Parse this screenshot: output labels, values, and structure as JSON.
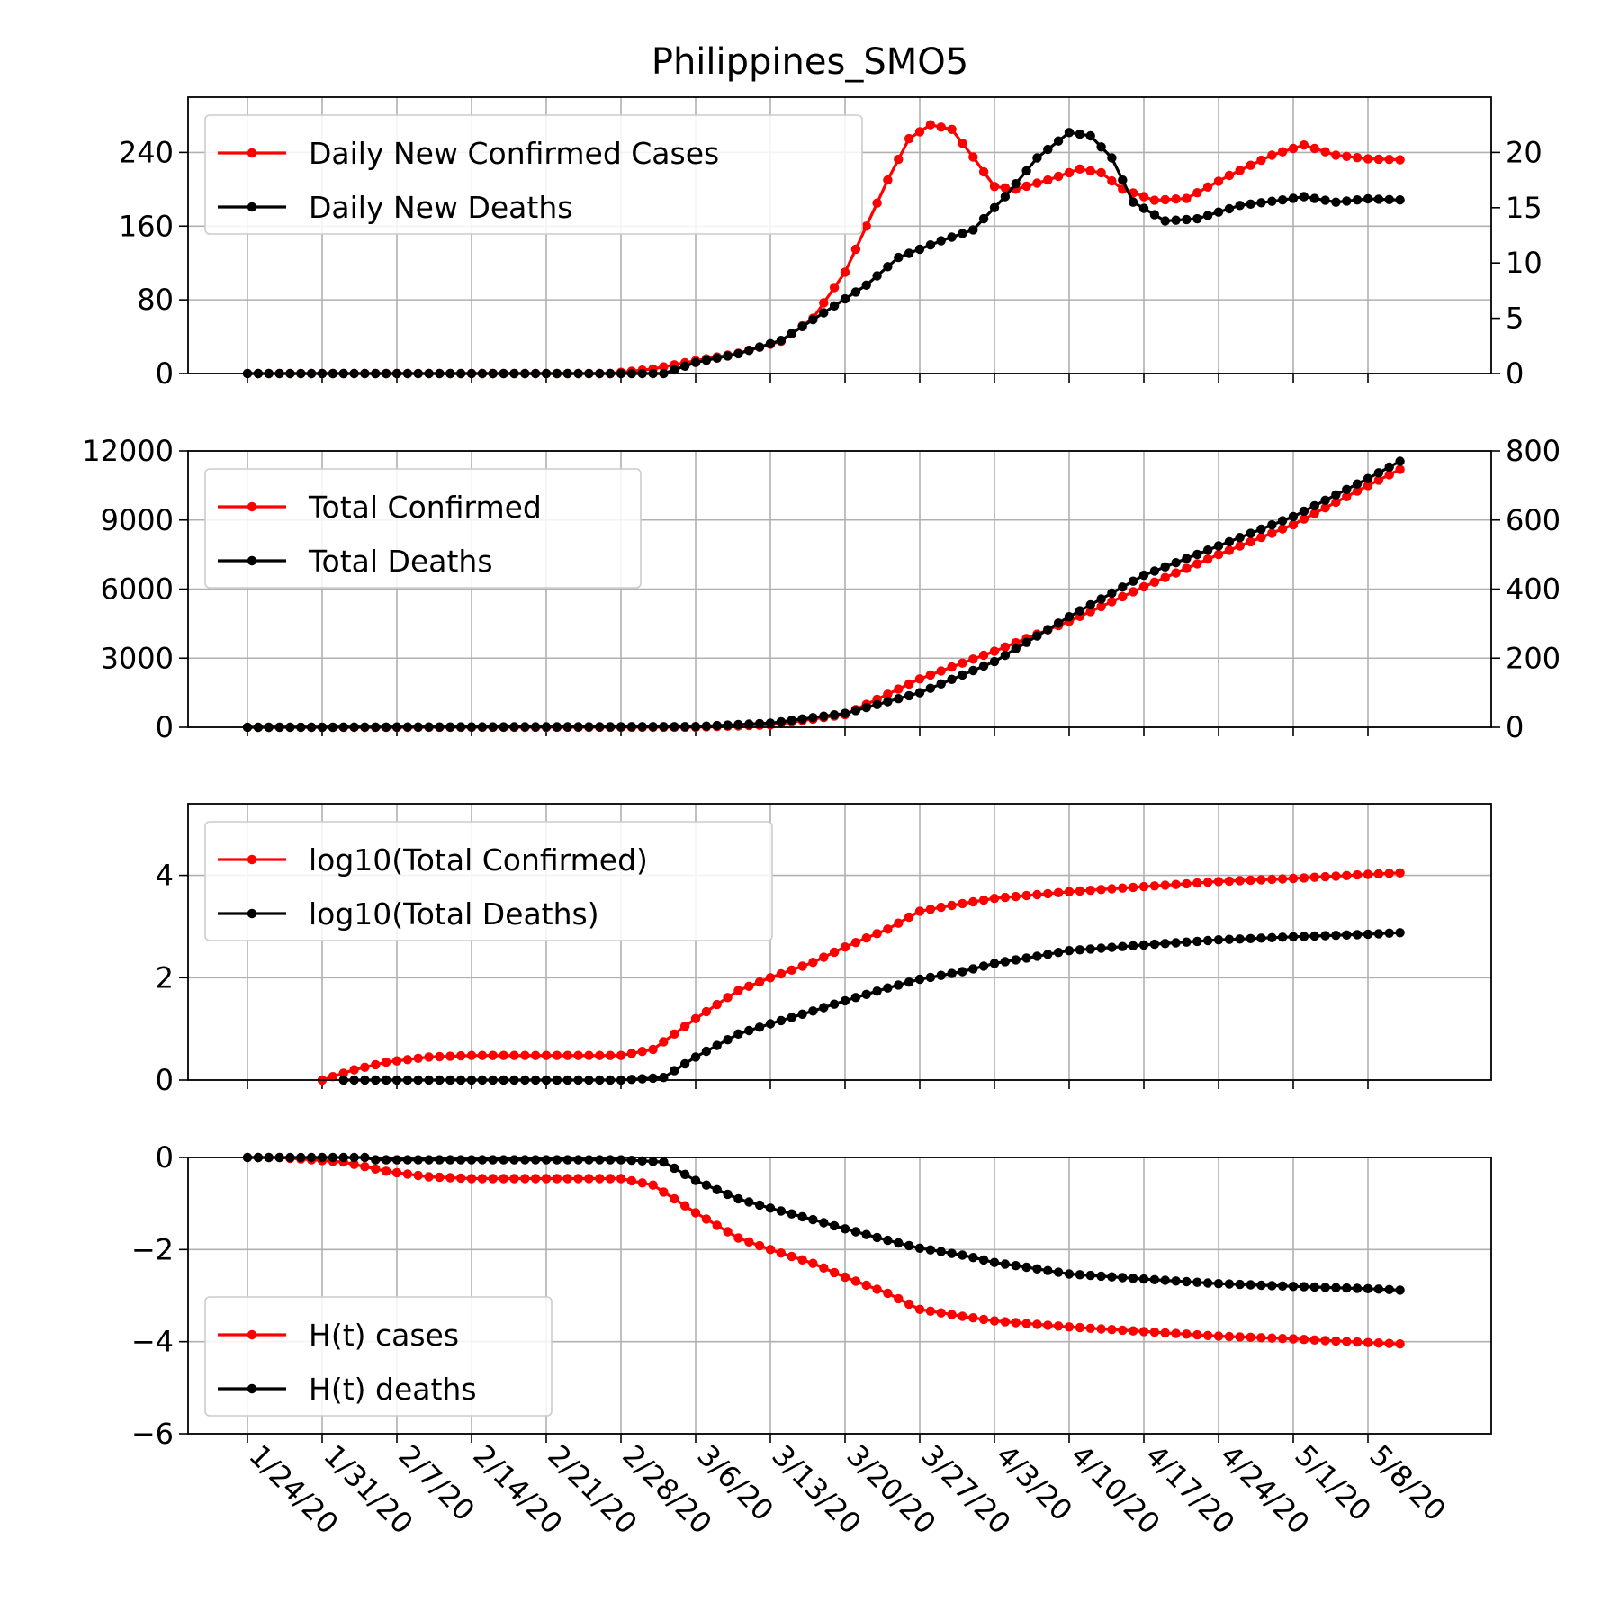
{
  "title": "Philippines_SMO5",
  "colors": {
    "cases": "#ff0000",
    "deaths": "#000000",
    "grid": "#b0b0b0"
  },
  "x_tick_labels": [
    "1/24/20",
    "1/31/20",
    "2/7/20",
    "2/14/20",
    "2/21/20",
    "2/28/20",
    "3/6/20",
    "3/13/20",
    "3/20/20",
    "3/27/20",
    "4/3/20",
    "4/10/20",
    "4/17/20",
    "4/24/20",
    "5/1/20",
    "5/8/20"
  ],
  "chart_data": [
    {
      "type": "line",
      "x_range": [
        "1/24/20",
        "5/11/20"
      ],
      "ylim_left": [
        0,
        300
      ],
      "ylim_right": [
        0,
        25
      ],
      "yticks_left": [
        "0",
        "80",
        "160",
        "240"
      ],
      "yticks_right": [
        "0",
        "5",
        "10",
        "15",
        "20"
      ],
      "legend": "top-left",
      "grid": true,
      "series": [
        {
          "name": "Daily New Confirmed Cases",
          "axis": "left",
          "color": "#ff0000",
          "points": [
            [
              "1/24/20",
              0
            ],
            [
              "2/27/20",
              0
            ],
            [
              "3/2/20",
              5
            ],
            [
              "3/6/20",
              14
            ],
            [
              "3/10/20",
              22
            ],
            [
              "3/14/20",
              35
            ],
            [
              "3/17/20",
              60
            ],
            [
              "3/20/20",
              110
            ],
            [
              "3/22/20",
              160
            ],
            [
              "3/24/20",
              210
            ],
            [
              "3/26/20",
              255
            ],
            [
              "3/28/20",
              270
            ],
            [
              "3/30/20",
              265
            ],
            [
              "4/1/20",
              235
            ],
            [
              "4/3/20",
              203
            ],
            [
              "4/5/20",
              200
            ],
            [
              "4/8/20",
              210
            ],
            [
              "4/11/20",
              222
            ],
            [
              "4/13/20",
              218
            ],
            [
              "4/15/20",
              200
            ],
            [
              "4/18/20",
              188
            ],
            [
              "4/21/20",
              190
            ],
            [
              "4/25/20",
              215
            ],
            [
              "4/29/20",
              237
            ],
            [
              "5/2/20",
              248
            ],
            [
              "5/5/20",
              237
            ],
            [
              "5/8/20",
              233
            ],
            [
              "5/11/20",
              232
            ]
          ]
        },
        {
          "name": "Daily New Deaths",
          "axis": "right",
          "color": "#000000",
          "points": [
            [
              "1/24/20",
              0
            ],
            [
              "3/3/20",
              0
            ],
            [
              "3/6/20",
              1
            ],
            [
              "3/10/20",
              1.8
            ],
            [
              "3/14/20",
              3
            ],
            [
              "3/18/20",
              5.5
            ],
            [
              "3/22/20",
              8
            ],
            [
              "3/25/20",
              10.5
            ],
            [
              "3/29/20",
              12
            ],
            [
              "4/1/20",
              13
            ],
            [
              "4/4/20",
              16
            ],
            [
              "4/7/20",
              19.5
            ],
            [
              "4/10/20",
              21.8
            ],
            [
              "4/12/20",
              21.5
            ],
            [
              "4/14/20",
              19.5
            ],
            [
              "4/16/20",
              15.5
            ],
            [
              "4/19/20",
              13.8
            ],
            [
              "4/22/20",
              14
            ],
            [
              "4/26/20",
              15.2
            ],
            [
              "4/30/20",
              15.7
            ],
            [
              "5/2/20",
              16
            ],
            [
              "5/5/20",
              15.5
            ],
            [
              "5/8/20",
              15.8
            ],
            [
              "5/11/20",
              15.7
            ]
          ]
        }
      ]
    },
    {
      "type": "line",
      "x_range": [
        "1/24/20",
        "5/11/20"
      ],
      "ylim_left": [
        0,
        12000
      ],
      "ylim_right": [
        0,
        800
      ],
      "yticks_left": [
        "0",
        "3000",
        "6000",
        "9000",
        "12000"
      ],
      "yticks_right": [
        "0",
        "200",
        "400",
        "600",
        "800"
      ],
      "legend": "top-left",
      "grid": true,
      "series": [
        {
          "name": "Total Confirmed",
          "axis": "left",
          "color": "#ff0000",
          "points": [
            [
              "1/24/20",
              0
            ],
            [
              "3/6/20",
              5
            ],
            [
              "3/13/20",
              100
            ],
            [
              "3/20/20",
              550
            ],
            [
              "3/27/20",
              2100
            ],
            [
              "4/3/20",
              3300
            ],
            [
              "4/10/20",
              4600
            ],
            [
              "4/17/20",
              6100
            ],
            [
              "4/24/20",
              7500
            ],
            [
              "5/1/20",
              8800
            ],
            [
              "5/8/20",
              10500
            ],
            [
              "5/11/20",
              11200
            ]
          ]
        },
        {
          "name": "Total Deaths",
          "axis": "right",
          "color": "#000000",
          "points": [
            [
              "1/24/20",
              0
            ],
            [
              "3/6/20",
              2
            ],
            [
              "3/13/20",
              12
            ],
            [
              "3/20/20",
              40
            ],
            [
              "3/27/20",
              100
            ],
            [
              "4/3/20",
              190
            ],
            [
              "4/10/20",
              320
            ],
            [
              "4/17/20",
              440
            ],
            [
              "4/24/20",
              525
            ],
            [
              "5/1/20",
              610
            ],
            [
              "5/8/20",
              720
            ],
            [
              "5/11/20",
              770
            ]
          ]
        }
      ]
    },
    {
      "type": "line",
      "x_range": [
        "1/24/20",
        "5/11/20"
      ],
      "ylim": [
        0,
        5.4
      ],
      "yticks": [
        "0",
        "2",
        "4"
      ],
      "legend": "top-left",
      "grid": true,
      "series": [
        {
          "name": "log10(Total Confirmed)",
          "color": "#ff0000",
          "points": [
            [
              "1/31/20",
              0
            ],
            [
              "2/3/20",
              0.2
            ],
            [
              "2/6/20",
              0.35
            ],
            [
              "2/10/20",
              0.45
            ],
            [
              "2/14/20",
              0.48
            ],
            [
              "2/28/20",
              0.48
            ],
            [
              "3/2/20",
              0.6
            ],
            [
              "3/6/20",
              1.2
            ],
            [
              "3/10/20",
              1.75
            ],
            [
              "3/13/20",
              2.0
            ],
            [
              "3/17/20",
              2.3
            ],
            [
              "3/20/20",
              2.6
            ],
            [
              "3/24/20",
              2.95
            ],
            [
              "3/27/20",
              3.3
            ],
            [
              "3/31/20",
              3.45
            ],
            [
              "4/3/20",
              3.55
            ],
            [
              "4/10/20",
              3.68
            ],
            [
              "4/17/20",
              3.78
            ],
            [
              "4/24/20",
              3.88
            ],
            [
              "5/1/20",
              3.94
            ],
            [
              "5/8/20",
              4.02
            ],
            [
              "5/11/20",
              4.05
            ]
          ]
        },
        {
          "name": "log10(Total Deaths)",
          "color": "#000000",
          "points": [
            [
              "2/2/20",
              0
            ],
            [
              "2/28/20",
              0
            ],
            [
              "3/3/20",
              0.05
            ],
            [
              "3/6/20",
              0.45
            ],
            [
              "3/10/20",
              0.9
            ],
            [
              "3/13/20",
              1.1
            ],
            [
              "3/17/20",
              1.35
            ],
            [
              "3/20/20",
              1.55
            ],
            [
              "3/24/20",
              1.8
            ],
            [
              "3/27/20",
              1.97
            ],
            [
              "3/31/20",
              2.12
            ],
            [
              "4/3/20",
              2.28
            ],
            [
              "4/7/20",
              2.42
            ],
            [
              "4/10/20",
              2.53
            ],
            [
              "4/17/20",
              2.64
            ],
            [
              "4/24/20",
              2.74
            ],
            [
              "5/1/20",
              2.8
            ],
            [
              "5/8/20",
              2.85
            ],
            [
              "5/11/20",
              2.88
            ]
          ]
        }
      ]
    },
    {
      "type": "line",
      "x_range": [
        "1/24/20",
        "5/11/20"
      ],
      "ylim": [
        -6,
        0
      ],
      "yticks": [
        "0",
        "−2",
        "−4",
        "−6"
      ],
      "legend": "bottom-left",
      "grid": true,
      "series": [
        {
          "name": "H(t) cases",
          "color": "#ff0000",
          "points": [
            [
              "1/24/20",
              0
            ],
            [
              "1/27/20",
              0
            ],
            [
              "2/2/20",
              -0.1
            ],
            [
              "2/6/20",
              -0.3
            ],
            [
              "2/10/20",
              -0.42
            ],
            [
              "2/14/20",
              -0.46
            ],
            [
              "2/28/20",
              -0.46
            ],
            [
              "3/2/20",
              -0.6
            ],
            [
              "3/6/20",
              -1.2
            ],
            [
              "3/10/20",
              -1.75
            ],
            [
              "3/13/20",
              -2.0
            ],
            [
              "3/17/20",
              -2.3
            ],
            [
              "3/20/20",
              -2.6
            ],
            [
              "3/24/20",
              -2.95
            ],
            [
              "3/27/20",
              -3.3
            ],
            [
              "3/31/20",
              -3.45
            ],
            [
              "4/3/20",
              -3.55
            ],
            [
              "4/10/20",
              -3.68
            ],
            [
              "4/17/20",
              -3.78
            ],
            [
              "4/24/20",
              -3.88
            ],
            [
              "5/1/20",
              -3.94
            ],
            [
              "5/8/20",
              -4.02
            ],
            [
              "5/11/20",
              -4.05
            ]
          ]
        },
        {
          "name": "H(t) deaths",
          "color": "#000000",
          "points": [
            [
              "1/24/20",
              0
            ],
            [
              "1/27/20",
              0
            ],
            [
              "2/4/20",
              0
            ],
            [
              "2/5/20",
              -0.05
            ],
            [
              "2/28/20",
              -0.05
            ],
            [
              "3/3/20",
              -0.1
            ],
            [
              "3/6/20",
              -0.5
            ],
            [
              "3/10/20",
              -0.9
            ],
            [
              "3/13/20",
              -1.1
            ],
            [
              "3/17/20",
              -1.35
            ],
            [
              "3/20/20",
              -1.55
            ],
            [
              "3/24/20",
              -1.8
            ],
            [
              "3/27/20",
              -1.97
            ],
            [
              "3/31/20",
              -2.12
            ],
            [
              "4/3/20",
              -2.28
            ],
            [
              "4/7/20",
              -2.42
            ],
            [
              "4/10/20",
              -2.53
            ],
            [
              "4/17/20",
              -2.64
            ],
            [
              "4/24/20",
              -2.74
            ],
            [
              "5/1/20",
              -2.8
            ],
            [
              "5/8/20",
              -2.85
            ],
            [
              "5/11/20",
              -2.88
            ]
          ]
        }
      ]
    }
  ]
}
